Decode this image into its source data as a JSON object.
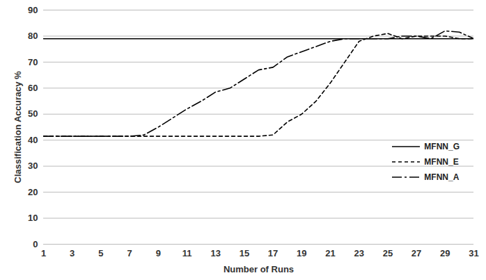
{
  "chart_data": {
    "type": "line",
    "x_label": "Number of Runs",
    "y_label": "Classification Accuracy %",
    "x": [
      1,
      2,
      3,
      4,
      5,
      6,
      7,
      8,
      9,
      10,
      11,
      12,
      13,
      14,
      15,
      16,
      17,
      18,
      19,
      20,
      21,
      22,
      23,
      24,
      25,
      26,
      27,
      28,
      29,
      30,
      31
    ],
    "series": [
      {
        "name": "MFNN_G",
        "color": "#000000",
        "line_style": "solid",
        "values": [
          79,
          79,
          79,
          79,
          79,
          79,
          79,
          79,
          79,
          79,
          79,
          79,
          79,
          79,
          79,
          79,
          79,
          79,
          79,
          79,
          79,
          79,
          79,
          79,
          79,
          79,
          79,
          79,
          79,
          79,
          79
        ]
      },
      {
        "name": "MFNN_E",
        "color": "#000000",
        "line_style": "dashed",
        "values": [
          41.5,
          41.5,
          41.5,
          41.5,
          41.5,
          41.5,
          41.5,
          41.5,
          41.5,
          41.5,
          41.5,
          41.5,
          41.5,
          41.5,
          41.5,
          41.5,
          42,
          47,
          50,
          55,
          62,
          70,
          78,
          80,
          81,
          79,
          80,
          80,
          80,
          79,
          79
        ]
      },
      {
        "name": "MFNN_A",
        "color": "#000000",
        "line_style": "dashdot",
        "values": [
          41.5,
          41.5,
          41.5,
          41.5,
          41.5,
          41.5,
          41.5,
          42,
          45,
          48.5,
          52,
          55,
          58.5,
          60,
          63.5,
          67,
          68,
          72,
          74,
          76,
          78,
          79,
          79,
          79,
          79,
          80,
          80,
          79,
          82,
          81.5,
          79
        ]
      }
    ],
    "xlim": [
      1,
      31
    ],
    "xticks": [
      1,
      3,
      5,
      7,
      9,
      11,
      13,
      15,
      17,
      19,
      21,
      23,
      25,
      27,
      29,
      31
    ],
    "ylim": [
      0,
      90
    ],
    "yticks": [
      0,
      10,
      20,
      30,
      40,
      50,
      60,
      70,
      80,
      90
    ],
    "grid": true,
    "legend": "right"
  }
}
